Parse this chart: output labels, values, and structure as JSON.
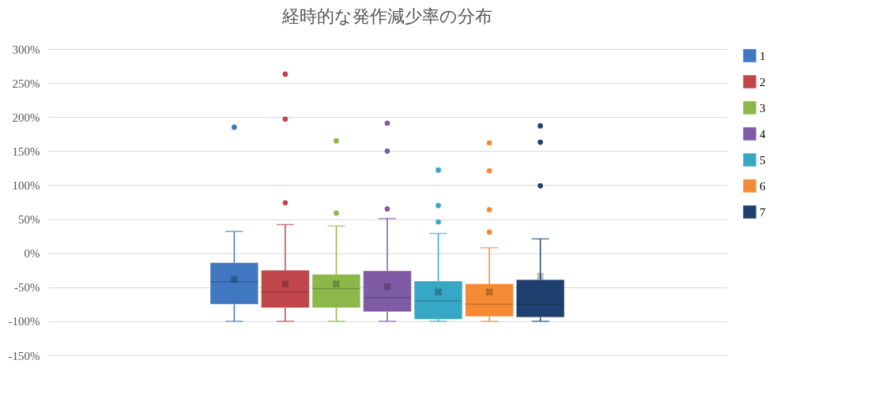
{
  "chart_data": {
    "type": "box",
    "title": "経時的な発作減少率の分布",
    "categories": [
      null
    ],
    "ylim": [
      -150,
      300
    ],
    "yticks": [
      {
        "value": -150,
        "label": "-150%"
      },
      {
        "value": -100,
        "label": "-100%"
      },
      {
        "value": -50,
        "label": "-50%"
      },
      {
        "value": 0,
        "label": "0%"
      },
      {
        "value": 50,
        "label": "50%"
      },
      {
        "value": 100,
        "label": "100%"
      },
      {
        "value": 150,
        "label": "150%"
      },
      {
        "value": 200,
        "label": "200%"
      },
      {
        "value": 250,
        "label": "250%"
      },
      {
        "value": 300,
        "label": "300%"
      }
    ],
    "grid": "y",
    "legend": "right",
    "tick_labels": "y",
    "series": [
      {
        "name": "1",
        "color": "#3f78c1",
        "boxes": [
          {
            "low": -100,
            "q1": -75,
            "median": -42,
            "q3": -14,
            "high": 32,
            "mean": -38,
            "outliers": [
              185
            ]
          }
        ]
      },
      {
        "name": "2",
        "color": "#c0464a",
        "boxes": [
          {
            "low": -100,
            "q1": -80,
            "median": -57,
            "q3": -25,
            "high": 42,
            "mean": -45,
            "outliers": [
              74,
              197,
              263
            ]
          }
        ]
      },
      {
        "name": "3",
        "color": "#8cb84a",
        "boxes": [
          {
            "low": -100,
            "q1": -80,
            "median": -52,
            "q3": -31,
            "high": 40,
            "mean": -45,
            "outliers": [
              59,
              165
            ]
          }
        ]
      },
      {
        "name": "4",
        "color": "#7f5ba6",
        "boxes": [
          {
            "low": -100,
            "q1": -86,
            "median": -65,
            "q3": -26,
            "high": 51,
            "mean": -49,
            "outliers": [
              65,
              150,
              191
            ]
          }
        ]
      },
      {
        "name": "5",
        "color": "#36a7c4",
        "boxes": [
          {
            "low": -100,
            "q1": -97,
            "median": -70,
            "q3": -41,
            "high": 29,
            "mean": -57,
            "outliers": [
              46,
              70,
              122
            ]
          }
        ]
      },
      {
        "name": "6",
        "color": "#f58a34",
        "boxes": [
          {
            "low": -100,
            "q1": -93,
            "median": -75,
            "q3": -45,
            "high": 8,
            "mean": -57,
            "outliers": [
              31,
              64,
              121,
              162
            ]
          }
        ]
      },
      {
        "name": "7",
        "color": "#1f406e",
        "boxes": [
          {
            "low": -100,
            "q1": -94,
            "median": -75,
            "q3": -39,
            "high": 21,
            "mean": -34,
            "outliers": [
              99,
              163,
              187
            ]
          }
        ]
      }
    ]
  }
}
